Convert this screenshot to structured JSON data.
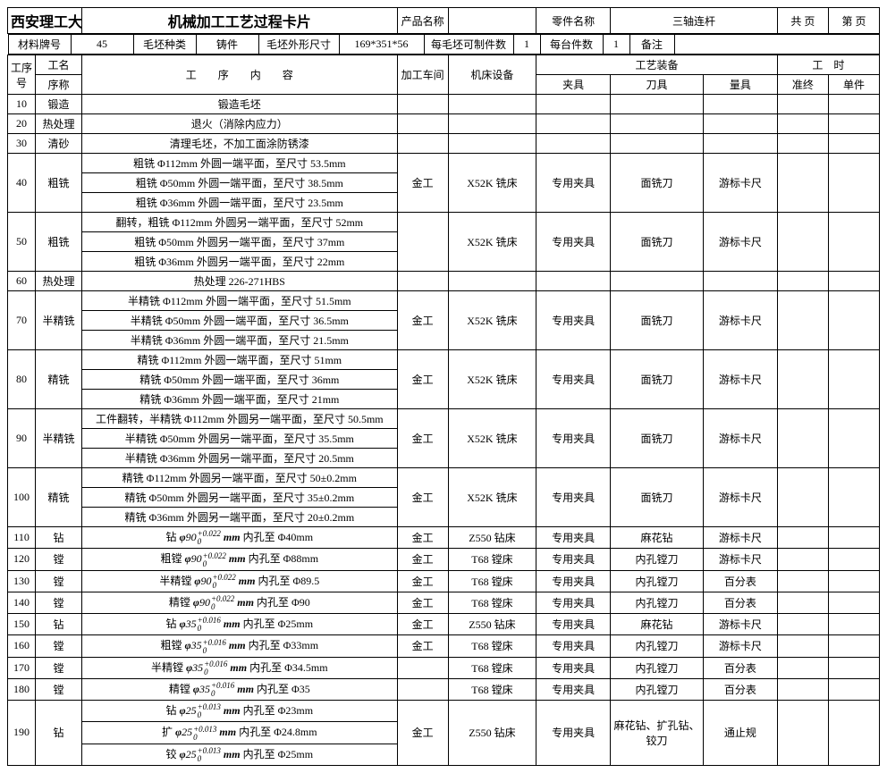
{
  "header": {
    "school": "西安理工大学高科学院",
    "title": "机械加工工艺过程卡片",
    "product_label": "产品名称",
    "part_label": "零件名称",
    "part_name": "三轴连杆",
    "page_total_label": "共 页",
    "page_no_label": "第 页"
  },
  "material": {
    "mat_no_label": "材料牌号",
    "mat_no": "45",
    "blank_type_label": "毛坯种类",
    "blank_type": "铸件",
    "blank_size_label": "毛坯外形尺寸",
    "blank_size": "169*351*56",
    "per_blank_label": "每毛坯可制件数",
    "per_blank": "1",
    "per_machine_label": "每台件数",
    "per_machine": "1",
    "remark_label": "备注"
  },
  "colhead": {
    "seq_no": "工序号",
    "seq_name": "工名",
    "seq_sub": "序称",
    "op_content": "工　　序　　内　　容",
    "workshop": "加工车间",
    "machine": "机床设备",
    "equip": "工艺装备",
    "fixture": "夹具",
    "cutter": "刀具",
    "gauge": "量具",
    "time": "工　时",
    "setup": "准终",
    "unit": "单件"
  },
  "rows": [
    {
      "no": "10",
      "name": "锻造",
      "content": [
        "锻造毛坯"
      ],
      "ws": "",
      "mc": "",
      "fx": "",
      "ct": "",
      "gg": ""
    },
    {
      "no": "20",
      "name": "热处理",
      "content": [
        "退火（消除内应力）"
      ],
      "ws": "",
      "mc": "",
      "fx": "",
      "ct": "",
      "gg": ""
    },
    {
      "no": "30",
      "name": "清砂",
      "content": [
        "清理毛坯，不加工面涂防锈漆"
      ],
      "ws": "",
      "mc": "",
      "fx": "",
      "ct": "",
      "gg": ""
    },
    {
      "no": "40",
      "name": "粗铣",
      "content": [
        "粗铣 Φ112mm 外圆一端平面，至尺寸 53.5mm",
        "粗铣 Φ50mm 外圆一端平面，至尺寸 38.5mm",
        "粗铣 Φ36mm 外圆一端平面，至尺寸 23.5mm"
      ],
      "ws": "金工",
      "mc": "X52K 铣床",
      "fx": "专用夹具",
      "ct": "面铣刀",
      "gg": "游标卡尺"
    },
    {
      "no": "50",
      "name": "粗铣",
      "content": [
        "翻转，粗铣 Φ112mm 外圆另一端平面，至尺寸 52mm",
        "粗铣 Φ50mm 外圆另一端平面，至尺寸 37mm",
        "粗铣 Φ36mm 外圆另一端平面，至尺寸 22mm"
      ],
      "ws": "",
      "mc": "X52K 铣床",
      "fx": "专用夹具",
      "ct": "面铣刀",
      "gg": "游标卡尺"
    },
    {
      "no": "60",
      "name": "热处理",
      "content": [
        "热处理 226-271HBS"
      ],
      "ws": "",
      "mc": "",
      "fx": "",
      "ct": "",
      "gg": ""
    },
    {
      "no": "70",
      "name": "半精铣",
      "content": [
        "半精铣 Φ112mm 外圆一端平面，至尺寸 51.5mm",
        "半精铣 Φ50mm 外圆一端平面，至尺寸 36.5mm",
        "半精铣 Φ36mm 外圆一端平面，至尺寸 21.5mm"
      ],
      "ws": "金工",
      "mc": "X52K 铣床",
      "fx": "专用夹具",
      "ct": "面铣刀",
      "gg": "游标卡尺"
    },
    {
      "no": "80",
      "name": "精铣",
      "content": [
        "精铣 Φ112mm 外圆一端平面，至尺寸 51mm",
        "精铣 Φ50mm 外圆一端平面，至尺寸 36mm",
        "精铣 Φ36mm 外圆一端平面，至尺寸 21mm"
      ],
      "ws": "金工",
      "mc": "X52K 铣床",
      "fx": "专用夹具",
      "ct": "面铣刀",
      "gg": "游标卡尺"
    },
    {
      "no": "90",
      "name": "半精铣",
      "content": [
        "工件翻转，半精铣 Φ112mm 外圆另一端平面，至尺寸 50.5mm",
        "半精铣 Φ50mm 外圆另一端平面，至尺寸 35.5mm",
        "半精铣 Φ36mm 外圆另一端平面，至尺寸 20.5mm"
      ],
      "ws": "金工",
      "mc": "X52K 铣床",
      "fx": "专用夹具",
      "ct": "面铣刀",
      "gg": "游标卡尺"
    },
    {
      "no": "100",
      "name": "精铣",
      "content": [
        "精铣 Φ112mm 外圆另一端平面，至尺寸 50±0.2mm",
        "精铣 Φ50mm 外圆另一端平面，至尺寸 35±0.2mm",
        "精铣 Φ36mm 外圆另一端平面，至尺寸 20±0.2mm"
      ],
      "ws": "金工",
      "mc": "X52K 铣床",
      "fx": "专用夹具",
      "ct": "面铣刀",
      "gg": "游标卡尺"
    },
    {
      "no": "110",
      "name": "钻",
      "content": [
        {
          "f": "钻",
          "d": "90",
          "t": "+0.022",
          "to": " Φ40mm"
        }
      ],
      "ws": "金工",
      "mc": "Z550 钻床",
      "fx": "专用夹具",
      "ct": "麻花钻",
      "gg": "游标卡尺"
    },
    {
      "no": "120",
      "name": "镗",
      "content": [
        {
          "f": "粗镗",
          "d": "90",
          "t": "+0.022",
          "to": " Φ88mm"
        }
      ],
      "ws": "金工",
      "mc": "T68 镗床",
      "fx": "专用夹具",
      "ct": "内孔镗刀",
      "gg": "游标卡尺"
    },
    {
      "no": "130",
      "name": "镗",
      "content": [
        {
          "f": "半精镗",
          "d": "90",
          "t": "+0.022",
          "to": " Φ89.5"
        }
      ],
      "ws": "金工",
      "mc": "T68 镗床",
      "fx": "专用夹具",
      "ct": "内孔镗刀",
      "gg": "百分表"
    },
    {
      "no": "140",
      "name": "镗",
      "content": [
        {
          "f": "精镗",
          "d": "90",
          "t": "+0.022",
          "to": " Φ90"
        }
      ],
      "ws": "金工",
      "mc": "T68 镗床",
      "fx": "专用夹具",
      "ct": "内孔镗刀",
      "gg": "百分表"
    },
    {
      "no": "150",
      "name": "钻",
      "content": [
        {
          "f": "钻",
          "d": "35",
          "t": "+0.016",
          "to": " Φ25mm"
        }
      ],
      "ws": "金工",
      "mc": "Z550 钻床",
      "fx": "专用夹具",
      "ct": "麻花钻",
      "gg": "游标卡尺"
    },
    {
      "no": "160",
      "name": "镗",
      "content": [
        {
          "f": "粗镗",
          "d": "35",
          "t": "+0.016",
          "to": " Φ33mm"
        }
      ],
      "ws": "金工",
      "mc": "T68 镗床",
      "fx": "专用夹具",
      "ct": "内孔镗刀",
      "gg": "游标卡尺"
    },
    {
      "no": "170",
      "name": "镗",
      "content": [
        {
          "f": "半精镗",
          "d": "35",
          "t": "+0.016",
          "to": " Φ34.5mm"
        }
      ],
      "ws": "",
      "mc": "T68 镗床",
      "fx": "专用夹具",
      "ct": "内孔镗刀",
      "gg": "百分表"
    },
    {
      "no": "180",
      "name": "镗",
      "content": [
        {
          "f": "精镗",
          "d": "35",
          "t": "+0.016",
          "to": " Φ35"
        }
      ],
      "ws": "",
      "mc": "T68 镗床",
      "fx": "专用夹具",
      "ct": "内孔镗刀",
      "gg": "百分表"
    },
    {
      "no": "190",
      "name": "钻",
      "content": [
        {
          "f": "钻",
          "d": "25",
          "t": "+0.013",
          "to": " Φ23mm"
        },
        {
          "f": "扩",
          "d": "25",
          "t": "+0.013",
          "to": " Φ24.8mm"
        },
        {
          "f": "铰",
          "d": "25",
          "t": "+0.013",
          "to": " Φ25mm"
        }
      ],
      "ws": "金工",
      "mc": "Z550 钻床",
      "fx": "专用夹具",
      "ct": "麻花钻、扩孔钻、铰刀",
      "gg": "通止规"
    }
  ]
}
